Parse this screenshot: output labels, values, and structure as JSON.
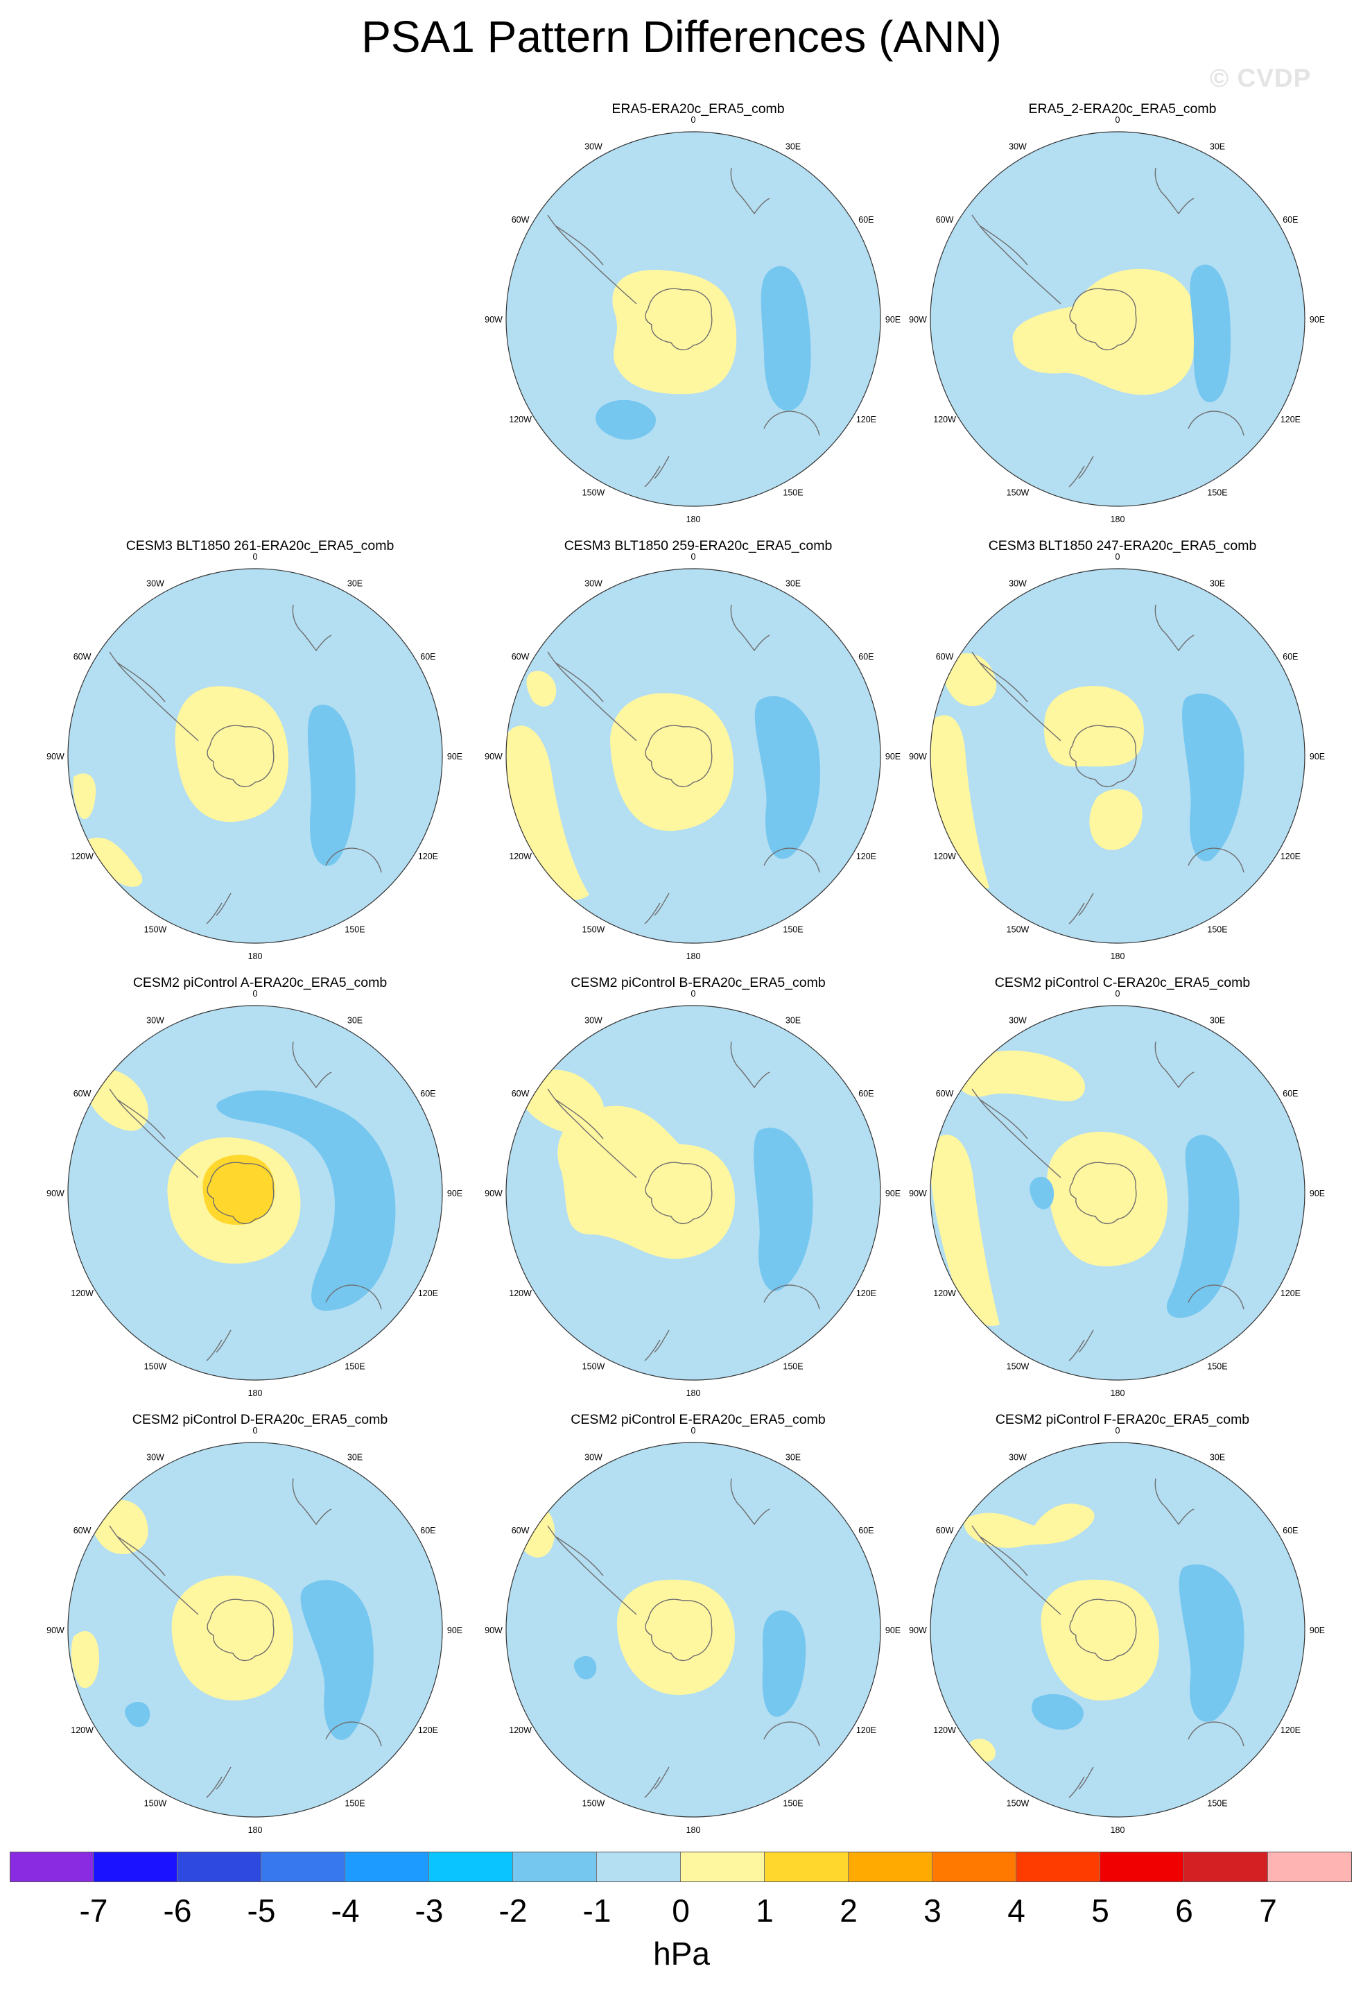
{
  "figure": {
    "title": "PSA1 Pattern Differences (ANN)",
    "watermark": "© CVDP"
  },
  "colorbar": {
    "units": "hPa",
    "ticks": [
      "-7",
      "-6",
      "-5",
      "-4",
      "-3",
      "-2",
      "-1",
      "0",
      "1",
      "2",
      "3",
      "4",
      "5",
      "6",
      "7"
    ],
    "colors": [
      "#8a2be2",
      "#1b13ff",
      "#2e49e0",
      "#3778ef",
      "#1e9bff",
      "#0ac4ff",
      "#75c7f0",
      "#b4def2",
      "#fff6a0",
      "#ffd72d",
      "#ffaa00",
      "#ff7800",
      "#ff3c00",
      "#f00000",
      "#d42022",
      "#ffb4b4"
    ]
  },
  "map_style": {
    "ocean_color": "#b4def2",
    "positive_color": "#fff6a0",
    "strong_positive_color": "#ffd72d",
    "negative_color": "#75c7f0",
    "coast_color": "#6e6e6e"
  },
  "lon_labels": {
    "top": "0",
    "r30": "30E",
    "r60": "60E",
    "r90": "90E",
    "r120": "120E",
    "r150": "150E",
    "bottom": "180",
    "l150": "150W",
    "l120": "120W",
    "l90": "90W",
    "l60": "60W",
    "l30": "30W"
  },
  "panels": [
    {
      "name": "ERA5-ERA20c_ERA5_comb",
      "row": 0,
      "col": 1,
      "variant": "era5"
    },
    {
      "name": "ERA5_2-ERA20c_ERA5_comb",
      "row": 0,
      "col": 2,
      "variant": "era5_2"
    },
    {
      "name": "CESM3 BLT1850 261-ERA20c_ERA5_comb",
      "row": 1,
      "col": 0,
      "variant": "b261"
    },
    {
      "name": "CESM3 BLT1850 259-ERA20c_ERA5_comb",
      "row": 1,
      "col": 1,
      "variant": "b259"
    },
    {
      "name": "CESM3 BLT1850 247-ERA20c_ERA5_comb",
      "row": 1,
      "col": 2,
      "variant": "b247"
    },
    {
      "name": "CESM2 piControl A-ERA20c_ERA5_comb",
      "row": 2,
      "col": 0,
      "variant": "pa"
    },
    {
      "name": "CESM2 piControl B-ERA20c_ERA5_comb",
      "row": 2,
      "col": 1,
      "variant": "pb"
    },
    {
      "name": "CESM2 piControl C-ERA20c_ERA5_comb",
      "row": 2,
      "col": 2,
      "variant": "pc"
    },
    {
      "name": "CESM2 piControl D-ERA20c_ERA5_comb",
      "row": 3,
      "col": 0,
      "variant": "pd"
    },
    {
      "name": "CESM2 piControl E-ERA20c_ERA5_comb",
      "row": 3,
      "col": 1,
      "variant": "pe"
    },
    {
      "name": "CESM2 piControl F-ERA20c_ERA5_comb",
      "row": 3,
      "col": 2,
      "variant": "pf"
    }
  ]
}
